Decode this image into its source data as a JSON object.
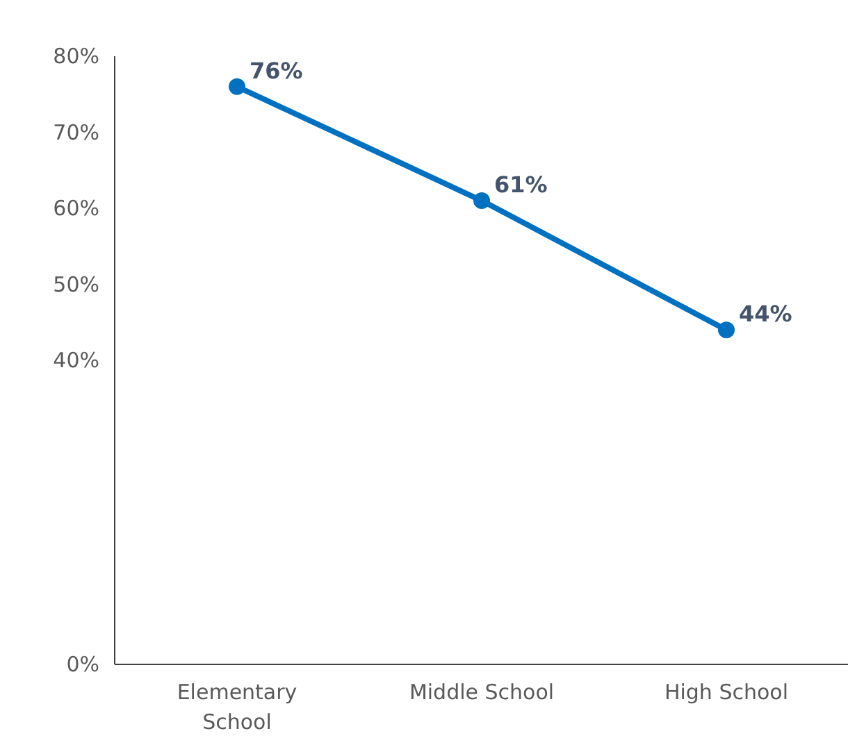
{
  "chart_data": {
    "type": "line",
    "categories": [
      "Elementary School",
      "Middle School",
      "High School"
    ],
    "series": [
      {
        "color": "#0070c0",
        "values": [
          76,
          61,
          44
        ]
      }
    ],
    "ylim": [
      0,
      80
    ],
    "yticks": [
      {
        "value": 0,
        "label": "0%"
      },
      {
        "value": 40,
        "label": "40%"
      },
      {
        "value": 50,
        "label": "50%"
      },
      {
        "value": 60,
        "label": "60%"
      },
      {
        "value": 70,
        "label": "70%"
      },
      {
        "value": 80,
        "label": "80%"
      }
    ],
    "value_labels": [
      "76%",
      "61%",
      "44%"
    ],
    "marker": "circle",
    "line_style": "solid"
  }
}
